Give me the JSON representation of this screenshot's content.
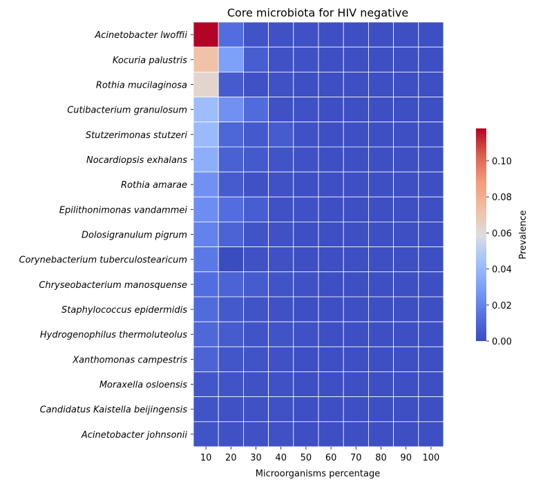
{
  "chart_data": {
    "type": "heatmap",
    "title": "Core microbiota for HIV negative",
    "xlabel": "Microorganisms percentage",
    "ylabel": "",
    "colorbar_label": "Prevalence",
    "colormap": "coolwarm",
    "vmin": 0.0,
    "vmax": 0.118,
    "colorbar_ticks": [
      "0.00",
      "0.02",
      "0.04",
      "0.06",
      "0.08",
      "0.10"
    ],
    "colorbar_tick_values": [
      0.0,
      0.02,
      0.04,
      0.06,
      0.08,
      0.1
    ],
    "x": [
      "10",
      "20",
      "30",
      "40",
      "50",
      "60",
      "70",
      "80",
      "90",
      "100"
    ],
    "y": [
      "Acinetobacter lwoffii",
      "Kocuria palustris",
      "Rothia mucilaginosa",
      "Cutibacterium granulosum",
      "Stutzerimonas stutzeri",
      "Nocardiopsis exhalans",
      "Rothia amarae",
      "Epilithonimonas vandammei",
      "Dolosigranulum pigrum",
      "Corynebacterium tuberculostearicum",
      "Chryseobacterium manosquense",
      "Staphylococcus epidermidis",
      "Hydrogenophilus thermoluteolus",
      "Xanthomonas campestris",
      "Moraxella osloensis",
      "Candidatus Kaistella beijingensis",
      "Acinetobacter johnsonii"
    ],
    "values": [
      [
        0.118,
        0.013,
        0.003,
        0.002,
        0.002,
        0.001,
        0.001,
        0.001,
        0.001,
        0.001
      ],
      [
        0.072,
        0.03,
        0.007,
        0.002,
        0.002,
        0.001,
        0.001,
        0.001,
        0.001,
        0.001
      ],
      [
        0.063,
        0.006,
        0.002,
        0.002,
        0.001,
        0.001,
        0.001,
        0.001,
        0.001,
        0.001
      ],
      [
        0.042,
        0.025,
        0.012,
        0.002,
        0.002,
        0.001,
        0.001,
        0.001,
        0.001,
        0.001
      ],
      [
        0.041,
        0.01,
        0.005,
        0.006,
        0.002,
        0.001,
        0.001,
        0.001,
        0.001,
        0.001
      ],
      [
        0.036,
        0.008,
        0.005,
        0.003,
        0.002,
        0.001,
        0.001,
        0.001,
        0.001,
        0.001
      ],
      [
        0.025,
        0.006,
        0.002,
        0.002,
        0.001,
        0.001,
        0.001,
        0.001,
        0.001,
        0.001
      ],
      [
        0.024,
        0.013,
        0.007,
        0.002,
        0.002,
        0.001,
        0.001,
        0.001,
        0.001,
        0.001
      ],
      [
        0.02,
        0.009,
        0.003,
        0.002,
        0.001,
        0.001,
        0.001,
        0.001,
        0.001,
        0.001
      ],
      [
        0.017,
        0.0,
        0.002,
        0.002,
        0.001,
        0.001,
        0.001,
        0.001,
        0.001,
        0.001
      ],
      [
        0.013,
        0.009,
        0.006,
        0.003,
        0.002,
        0.001,
        0.001,
        0.001,
        0.001,
        0.001
      ],
      [
        0.012,
        0.005,
        0.003,
        0.002,
        0.001,
        0.001,
        0.001,
        0.001,
        0.001,
        0.001
      ],
      [
        0.011,
        0.006,
        0.003,
        0.003,
        0.002,
        0.001,
        0.001,
        0.001,
        0.001,
        0.001
      ],
      [
        0.009,
        0.004,
        0.003,
        0.002,
        0.001,
        0.001,
        0.001,
        0.001,
        0.001,
        0.001
      ],
      [
        0.004,
        0.003,
        0.002,
        0.002,
        0.001,
        0.001,
        0.001,
        0.001,
        0.001,
        0.001
      ],
      [
        0.003,
        0.002,
        0.002,
        0.002,
        0.001,
        0.001,
        0.001,
        0.001,
        0.001,
        0.001
      ],
      [
        0.003,
        0.002,
        0.002,
        0.002,
        0.001,
        0.001,
        0.001,
        0.001,
        0.001,
        0.001
      ]
    ],
    "grid": true,
    "legend": "colorbar-right"
  }
}
